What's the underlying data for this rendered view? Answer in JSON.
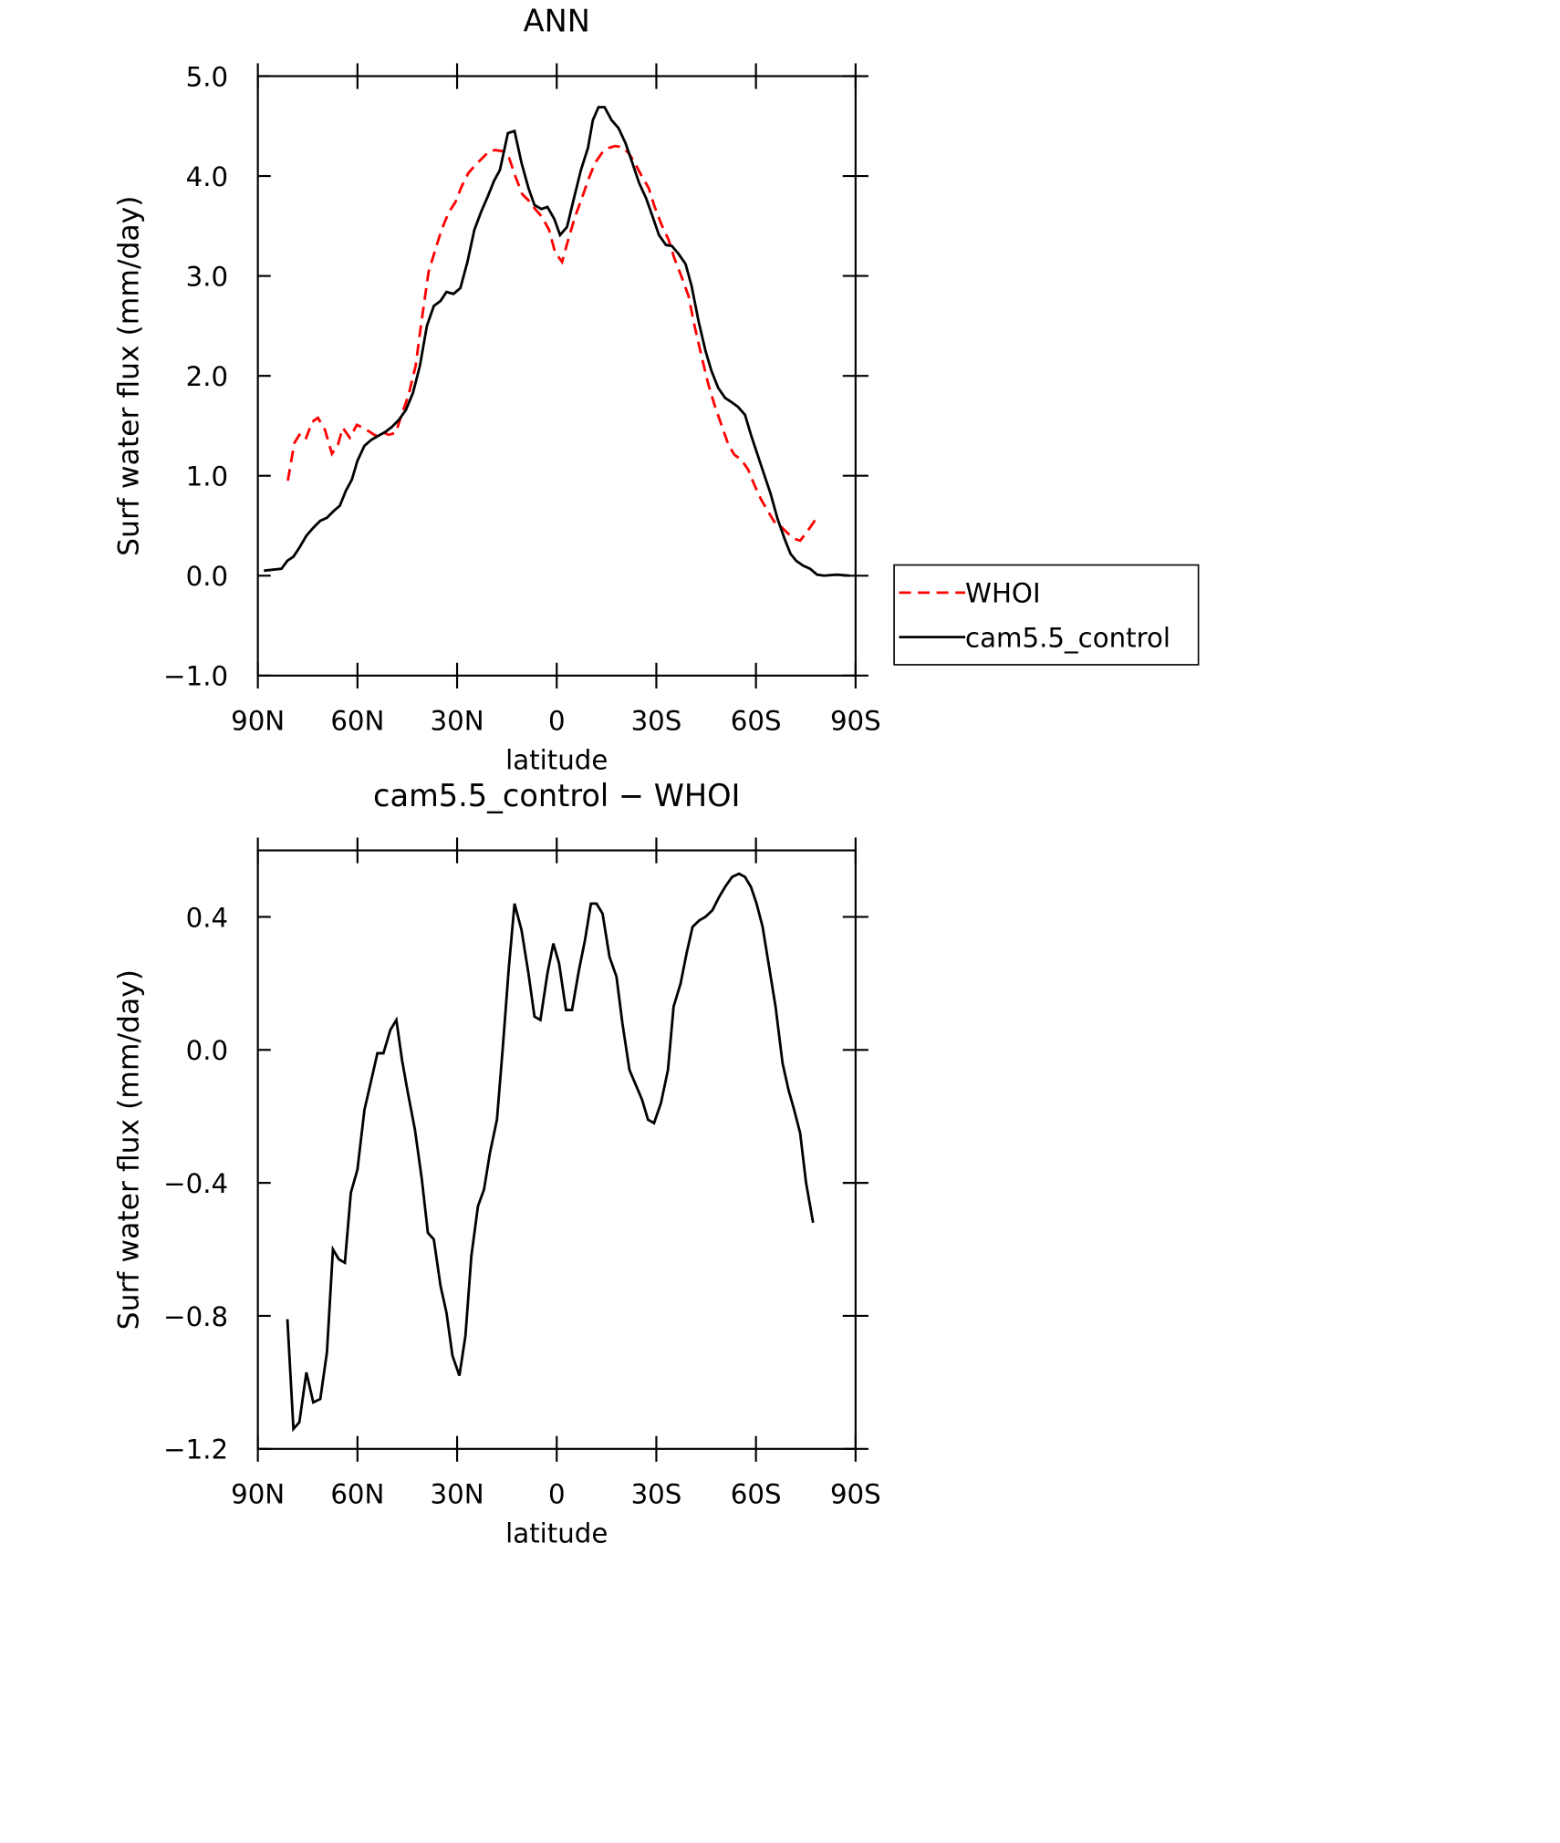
{
  "chart_data": [
    {
      "type": "line",
      "title": "ANN",
      "xlabel": "latitude",
      "ylabel": "Surf water flux (mm/day)",
      "xlim": [
        90,
        -90
      ],
      "xticks": [
        {
          "value": 90,
          "label": "90N"
        },
        {
          "value": 60,
          "label": "60N"
        },
        {
          "value": 30,
          "label": "30N"
        },
        0,
        {
          "value": -30,
          "label": "30S"
        },
        {
          "value": -60,
          "label": "60S"
        },
        {
          "value": -90,
          "label": "90S"
        }
      ],
      "ylim": [
        -1,
        5
      ],
      "yticks": [
        {
          "value": -1,
          "label": "−1.0"
        },
        {
          "value": 0,
          "label": "0.0"
        },
        {
          "value": 1,
          "label": "1.0"
        },
        {
          "value": 2,
          "label": "2.0"
        },
        {
          "value": 3,
          "label": "3.0"
        },
        {
          "value": 4,
          "label": "4.0"
        },
        {
          "value": 5,
          "label": "5.0"
        }
      ],
      "legend": "right",
      "series": [
        {
          "name": "WHOI",
          "color": "#ff0000",
          "dash": true,
          "x": [
            81,
            79,
            77.5,
            75.7,
            73.6,
            71.9,
            69.8,
            67.7,
            65.9,
            64.4,
            62.3,
            60.2,
            58.4,
            56.3,
            54.5,
            52.7,
            50.6,
            48.5,
            46.7,
            44.6,
            42.5,
            40.7,
            38.6,
            36.5,
            34.7,
            32.6,
            30.5,
            28.7,
            26.6,
            24.5,
            22.4,
            20.3,
            18.5,
            16.4,
            14.3,
            12.5,
            10.4,
            8.3,
            6.5,
            4.4,
            2.3,
            0.5,
            -1.6,
            -3.7,
            -5.5,
            -7.6,
            -9.7,
            -11.5,
            -13.6,
            -15.7,
            -17.5,
            -19.6,
            -21.7,
            -23.5,
            -25.6,
            -27.7,
            -29.5,
            -31.6,
            -33.7,
            -35.5,
            -37.6,
            -39.7,
            -41.5,
            -43.6,
            -45.7,
            -47.5,
            -49.6,
            -51.7,
            -53.5,
            -55.6,
            -57.7,
            -59.5,
            -61.6,
            -63.7,
            -65.5,
            -67.6,
            -69.7,
            -71.5,
            -73.3,
            -75.4,
            -77.5,
            -78.4
          ],
          "values": [
            0.95,
            1.33,
            1.41,
            1.36,
            1.54,
            1.58,
            1.46,
            1.22,
            1.31,
            1.48,
            1.38,
            1.51,
            1.48,
            1.44,
            1.4,
            1.44,
            1.41,
            1.43,
            1.61,
            1.81,
            2.1,
            2.55,
            3.04,
            3.27,
            3.46,
            3.63,
            3.74,
            3.89,
            4.03,
            4.11,
            4.18,
            4.25,
            4.26,
            4.25,
            4.18,
            4.0,
            3.82,
            3.75,
            3.67,
            3.59,
            3.46,
            3.24,
            3.14,
            3.39,
            3.59,
            3.78,
            3.98,
            4.13,
            4.23,
            4.28,
            4.3,
            4.29,
            4.23,
            4.13,
            4.0,
            3.88,
            3.69,
            3.51,
            3.36,
            3.17,
            2.99,
            2.8,
            2.5,
            2.2,
            1.91,
            1.71,
            1.51,
            1.31,
            1.21,
            1.16,
            1.06,
            0.91,
            0.76,
            0.64,
            0.54,
            0.49,
            0.42,
            0.37,
            0.35,
            0.44,
            0.54,
            0.61
          ]
        },
        {
          "name": "cam5.5_control",
          "color": "#000000",
          "dash": false,
          "x": [
            88.2,
            82.9,
            81.1,
            79.3,
            77.5,
            75.4,
            73.3,
            71.2,
            69.2,
            67.1,
            65.3,
            63.5,
            61.7,
            60.0,
            57.9,
            55.8,
            53.7,
            51.6,
            49.6,
            47.5,
            45.4,
            43.3,
            41.2,
            39.1,
            37.0,
            35.0,
            33.2,
            31.1,
            29.0,
            26.9,
            24.8,
            22.8,
            20.7,
            18.9,
            17.1,
            14.7,
            12.7,
            10.6,
            8.5,
            6.7,
            4.6,
            2.8,
            0.7,
            -1.0,
            -3.1,
            -5.2,
            -7.3,
            -9.4,
            -10.9,
            -12.6,
            -14.4,
            -16.5,
            -18.6,
            -20.7,
            -22.8,
            -24.8,
            -26.9,
            -28.7,
            -30.8,
            -32.9,
            -34.7,
            -36.7,
            -38.8,
            -40.6,
            -42.7,
            -44.8,
            -46.6,
            -48.6,
            -50.7,
            -52.5,
            -54.6,
            -56.7,
            -58.5,
            -60.5,
            -62.6,
            -64.4,
            -66.5,
            -68.6,
            -70.4,
            -72.1,
            -74.2,
            -76.3,
            -78.4,
            -80.5,
            -84.3,
            -88.2
          ],
          "values": [
            0.05,
            0.07,
            0.15,
            0.19,
            0.28,
            0.4,
            0.48,
            0.55,
            0.58,
            0.65,
            0.7,
            0.85,
            0.96,
            1.15,
            1.3,
            1.36,
            1.4,
            1.44,
            1.49,
            1.56,
            1.66,
            1.83,
            2.1,
            2.5,
            2.7,
            2.75,
            2.84,
            2.82,
            2.88,
            3.14,
            3.46,
            3.64,
            3.8,
            3.95,
            4.06,
            4.43,
            4.45,
            4.13,
            3.88,
            3.71,
            3.67,
            3.69,
            3.57,
            3.41,
            3.49,
            3.78,
            4.06,
            4.28,
            4.56,
            4.69,
            4.69,
            4.56,
            4.48,
            4.33,
            4.13,
            3.93,
            3.78,
            3.61,
            3.41,
            3.31,
            3.3,
            3.22,
            3.12,
            2.9,
            2.55,
            2.25,
            2.05,
            1.88,
            1.78,
            1.74,
            1.69,
            1.61,
            1.41,
            1.21,
            1.0,
            0.82,
            0.57,
            0.37,
            0.22,
            0.15,
            0.1,
            0.07,
            0.01,
            0.0,
            0.01,
            0.0
          ]
        }
      ]
    },
    {
      "type": "line",
      "title": "cam5.5_control − WHOI",
      "xlabel": "latitude",
      "ylabel": "Surf water flux (mm/day)",
      "xlim": [
        90,
        -90
      ],
      "xticks": [
        {
          "value": 90,
          "label": "90N"
        },
        {
          "value": 60,
          "label": "60N"
        },
        {
          "value": 30,
          "label": "30N"
        },
        0,
        {
          "value": -30,
          "label": "30S"
        },
        {
          "value": -60,
          "label": "60S"
        },
        {
          "value": -90,
          "label": "90S"
        }
      ],
      "ylim": [
        -1.2,
        0.6
      ],
      "yticks": [
        {
          "value": -1.2,
          "label": "−1.2"
        },
        {
          "value": -0.8,
          "label": "−0.8"
        },
        {
          "value": -0.4,
          "label": "−0.4"
        },
        {
          "value": 0,
          "label": "0.0"
        },
        0.4
      ],
      "series": [
        {
          "color": "#000000",
          "dash": false,
          "x": [
            81.1,
            79.3,
            77.5,
            75.4,
            73.3,
            71.2,
            69.2,
            67.4,
            65.6,
            63.8,
            62.0,
            60.0,
            57.9,
            55.8,
            54.0,
            52.2,
            50.1,
            48.3,
            46.6,
            44.8,
            42.7,
            40.6,
            38.8,
            37.0,
            35.0,
            33.2,
            31.4,
            29.3,
            27.5,
            25.7,
            23.7,
            21.9,
            20.1,
            18.0,
            16.2,
            14.4,
            12.7,
            10.6,
            8.5,
            6.7,
            4.9,
            2.8,
            1.0,
            -0.7,
            -2.8,
            -4.6,
            -6.7,
            -8.5,
            -10.3,
            -12.0,
            -13.8,
            -15.9,
            -18.0,
            -19.8,
            -21.9,
            -23.6,
            -25.7,
            -27.5,
            -29.3,
            -31.4,
            -33.5,
            -35.2,
            -37.3,
            -39.1,
            -40.9,
            -43.0,
            -44.8,
            -46.9,
            -48.9,
            -50.7,
            -52.8,
            -54.9,
            -56.7,
            -58.5,
            -60.2,
            -62.0,
            -63.8,
            -65.9,
            -68.0,
            -69.8,
            -71.5,
            -73.3,
            -75.1,
            -77.2
          ],
          "values": [
            -0.81,
            -1.14,
            -1.12,
            -0.97,
            -1.06,
            -1.05,
            -0.91,
            -0.6,
            -0.63,
            -0.64,
            -0.43,
            -0.36,
            -0.18,
            -0.09,
            -0.01,
            -0.01,
            0.06,
            0.09,
            -0.03,
            -0.13,
            -0.24,
            -0.39,
            -0.55,
            -0.57,
            -0.71,
            -0.79,
            -0.92,
            -0.98,
            -0.86,
            -0.62,
            -0.47,
            -0.42,
            -0.31,
            -0.21,
            0.01,
            0.25,
            0.44,
            0.36,
            0.23,
            0.1,
            0.09,
            0.23,
            0.32,
            0.26,
            0.12,
            0.12,
            0.24,
            0.33,
            0.44,
            0.44,
            0.41,
            0.28,
            0.22,
            0.08,
            -0.06,
            -0.1,
            -0.15,
            -0.21,
            -0.22,
            -0.16,
            -0.06,
            0.13,
            0.2,
            0.29,
            0.37,
            0.39,
            0.4,
            0.42,
            0.46,
            0.49,
            0.52,
            0.53,
            0.52,
            0.49,
            0.44,
            0.37,
            0.26,
            0.13,
            -0.04,
            -0.12,
            -0.18,
            -0.25,
            -0.4,
            -0.52
          ]
        }
      ]
    }
  ]
}
